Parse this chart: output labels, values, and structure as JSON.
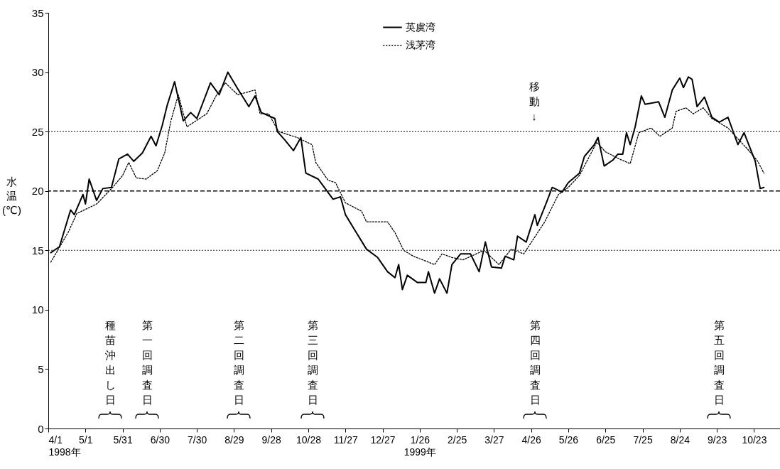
{
  "chart_data": {
    "type": "line",
    "ylabel": "水温(℃)",
    "legend": "top",
    "xlim": [
      "1998-04-01",
      "1999-11-13"
    ],
    "ylim": [
      0,
      35
    ],
    "yticks": [
      0,
      5,
      10,
      15,
      20,
      25,
      30,
      35
    ],
    "xticks": [
      {
        "value": "1998-04-01",
        "label": "4/1\n1998年"
      },
      {
        "value": "1998-05-01",
        "label": "5/1"
      },
      {
        "value": "1998-05-31",
        "label": "5/31"
      },
      {
        "value": "1998-06-30",
        "label": "6/30"
      },
      {
        "value": "1998-07-30",
        "label": "7/30"
      },
      {
        "value": "1998-08-29",
        "label": "8/29"
      },
      {
        "value": "1998-09-28",
        "label": "9/28"
      },
      {
        "value": "1998-10-28",
        "label": "10/28"
      },
      {
        "value": "1998-11-27",
        "label": "11/27"
      },
      {
        "value": "1998-12-27",
        "label": "12/27"
      },
      {
        "value": "1999-01-26",
        "label": "1/26\n1999年"
      },
      {
        "value": "1999-02-25",
        "label": "2/25"
      },
      {
        "value": "1999-03-27",
        "label": "3/27"
      },
      {
        "value": "1999-04-26",
        "label": "4/26"
      },
      {
        "value": "1999-05-26",
        "label": "5/26"
      },
      {
        "value": "1999-06-25",
        "label": "6/25"
      },
      {
        "value": "1999-07-25",
        "label": "7/25"
      },
      {
        "value": "1999-08-24",
        "label": "8/24"
      },
      {
        "value": "1999-09-23",
        "label": "9/23"
      },
      {
        "value": "1999-10-23",
        "label": "10/23"
      }
    ],
    "series": [
      {
        "name": "英虞湾",
        "color": "#000000",
        "line_style": "solid",
        "x": [
          "1998-04-03",
          "1998-04-10",
          "1998-04-19",
          "1998-04-22",
          "1998-04-29",
          "1998-05-01",
          "1998-05-04",
          "1998-05-10",
          "1998-05-15",
          "1998-05-22",
          "1998-05-28",
          "1998-06-04",
          "1998-06-09",
          "1998-06-16",
          "1998-06-23",
          "1998-06-27",
          "1998-07-02",
          "1998-07-06",
          "1998-07-12",
          "1998-07-19",
          "1998-07-25",
          "1998-07-30",
          "1998-08-10",
          "1998-08-17",
          "1998-08-24",
          "1998-09-01",
          "1998-09-10",
          "1998-09-15",
          "1998-09-20",
          "1998-10-01",
          "1998-10-03",
          "1998-10-09",
          "1998-10-16",
          "1998-10-22",
          "1998-10-26",
          "1998-11-05",
          "1998-11-17",
          "1998-11-23",
          "1998-11-27",
          "1998-12-04",
          "1998-12-14",
          "1998-12-23",
          "1998-12-31",
          "1999-01-06",
          "1999-01-09",
          "1999-01-12",
          "1999-01-16",
          "1999-01-24",
          "1999-01-31",
          "1999-02-02",
          "1999-02-07",
          "1999-02-11",
          "1999-02-17",
          "1999-02-21",
          "1999-02-28",
          "1999-03-08",
          "1999-03-15",
          "1999-03-20",
          "1999-03-25",
          "1999-04-02",
          "1999-04-05",
          "1999-04-12",
          "1999-04-15",
          "1999-04-22",
          "1999-04-29",
          "1999-05-01",
          "1999-05-09",
          "1999-05-13",
          "1999-05-21",
          "1999-05-26",
          "1999-06-04",
          "1999-06-08",
          "1999-06-16",
          "1999-06-19",
          "1999-06-24",
          "1999-07-01",
          "1999-07-05",
          "1999-07-09",
          "1999-07-12",
          "1999-07-15",
          "1999-07-19",
          "1999-07-24",
          "1999-07-27",
          "1999-08-07",
          "1999-08-12",
          "1999-08-18",
          "1999-08-24",
          "1999-08-27",
          "1999-08-31",
          "1999-09-03",
          "1999-09-07",
          "1999-09-13",
          "1999-09-19",
          "1999-09-25",
          "1999-10-02",
          "1999-10-10",
          "1999-10-15",
          "1999-10-24",
          "1999-10-28",
          "1999-10-31"
        ],
        "values": [
          14.8,
          15.3,
          18.4,
          18.0,
          19.7,
          18.9,
          21.0,
          19.2,
          20.2,
          20.3,
          22.7,
          23.1,
          22.5,
          23.2,
          24.6,
          23.8,
          25.5,
          27.2,
          29.2,
          25.9,
          26.6,
          26.1,
          29.1,
          28.1,
          30.0,
          28.6,
          27.1,
          28.0,
          26.6,
          26.1,
          25.0,
          24.3,
          23.4,
          24.5,
          21.5,
          21.0,
          19.3,
          19.5,
          18.0,
          16.8,
          15.1,
          14.4,
          13.2,
          12.7,
          13.8,
          11.7,
          12.9,
          12.3,
          12.3,
          13.2,
          11.4,
          12.6,
          11.4,
          13.8,
          14.7,
          14.7,
          13.2,
          15.7,
          13.6,
          13.5,
          14.5,
          14.2,
          16.2,
          15.7,
          18.0,
          17.1,
          19.2,
          20.3,
          19.9,
          20.7,
          21.5,
          22.9,
          23.9,
          24.5,
          22.1,
          22.6,
          23.1,
          23.1,
          24.9,
          23.9,
          25.4,
          28.0,
          27.3,
          27.5,
          26.2,
          28.5,
          29.5,
          28.7,
          29.6,
          29.4,
          27.1,
          27.9,
          26.2,
          25.8,
          26.2,
          23.9,
          24.9,
          22.5,
          20.2,
          20.3
        ]
      },
      {
        "name": "浅茅湾",
        "color": "#000000",
        "line_style": "dotted",
        "x": [
          "1998-04-03",
          "1998-04-17",
          "1998-04-24",
          "1998-05-10",
          "1998-05-23",
          "1998-05-31",
          "1998-06-05",
          "1998-06-11",
          "1998-06-19",
          "1998-06-28",
          "1998-07-04",
          "1998-07-09",
          "1998-07-15",
          "1998-07-22",
          "1998-08-07",
          "1998-08-15",
          "1998-08-22",
          "1998-09-01",
          "1998-09-15",
          "1998-09-19",
          "1998-09-26",
          "1998-10-04",
          "1998-10-19",
          "1998-10-31",
          "1998-11-03",
          "1998-11-13",
          "1998-11-19",
          "1998-11-27",
          "1998-12-10",
          "1998-12-14",
          "1998-12-31",
          "1999-01-06",
          "1999-01-13",
          "1999-01-21",
          "1999-02-07",
          "1999-02-13",
          "1999-02-21",
          "1999-03-02",
          "1999-03-19",
          "1999-03-31",
          "1999-04-10",
          "1999-04-20",
          "1999-05-07",
          "1999-05-18",
          "1999-05-26",
          "1999-06-04",
          "1999-06-18",
          "1999-06-25",
          "1999-07-06",
          "1999-07-15",
          "1999-07-22",
          "1999-08-01",
          "1999-08-08",
          "1999-08-18",
          "1999-08-21",
          "1999-08-29",
          "1999-09-04",
          "1999-09-12",
          "1999-09-19",
          "1999-10-02",
          "1999-10-09",
          "1999-10-18",
          "1999-10-26",
          "1999-10-31"
        ],
        "values": [
          14.0,
          16.5,
          18.1,
          18.9,
          20.3,
          21.3,
          22.4,
          21.1,
          21.0,
          21.7,
          23.2,
          25.9,
          28.1,
          25.4,
          26.5,
          28.1,
          29.1,
          28.1,
          28.5,
          26.5,
          26.5,
          25.0,
          24.5,
          23.9,
          22.4,
          20.9,
          20.7,
          19.0,
          18.3,
          17.4,
          17.4,
          16.5,
          15.0,
          14.5,
          13.8,
          14.7,
          14.4,
          14.2,
          15.0,
          13.8,
          15.1,
          14.7,
          17.4,
          19.7,
          20.3,
          21.3,
          24.1,
          23.3,
          22.7,
          22.3,
          24.9,
          25.3,
          24.6,
          25.3,
          26.7,
          27.0,
          26.5,
          27.0,
          26.1,
          25.3,
          24.5,
          23.5,
          22.5,
          21.5
        ]
      }
    ],
    "ref_lines": [
      {
        "axis": "y",
        "value": 15,
        "color": "#333333",
        "line_style": "dotted"
      },
      {
        "axis": "y",
        "value": 20,
        "color": "#000000",
        "line_style": "dashed"
      },
      {
        "axis": "y",
        "value": 25,
        "color": "#333333",
        "line_style": "dotted"
      }
    ],
    "annotations": [
      "種苗沖出し日",
      "第一回調査日",
      "第二回調査日",
      "第三回調査日",
      "移動↓",
      "第四回調査日",
      "第五回調査日"
    ]
  }
}
